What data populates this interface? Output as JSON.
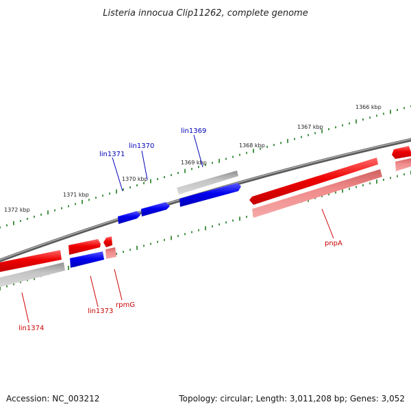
{
  "title": "Listeria innocua Clip11262, complete genome",
  "footer": {
    "accession": "Accession: NC_003212",
    "topology": "Topology: circular; Length: 3,011,208 bp; Genes: 3,052"
  },
  "ticks": {
    "outer": [
      "1366 kbp",
      "1367 kbp",
      "1368 kbp",
      "1369 kbp",
      "1370 kbp",
      "1371 kbp",
      "1372 kbp"
    ]
  },
  "genes": {
    "lin1369": "lin1369",
    "lin1370": "lin1370",
    "lin1371": "lin1371",
    "pnpA": "pnpA",
    "lin1373": "lin1373",
    "rpmG": "rpmG",
    "lin1374": "lin1374"
  },
  "colors": {
    "forward": "#ee0000",
    "reverse": "#0000ee",
    "shadow_forward": "#f08080",
    "shadow_reverse": "#b8b8b8",
    "backbone": "#7a7a7a",
    "tick": "#1a7a1a",
    "label_red": "#cc0000",
    "label_blue": "#0000bb"
  }
}
